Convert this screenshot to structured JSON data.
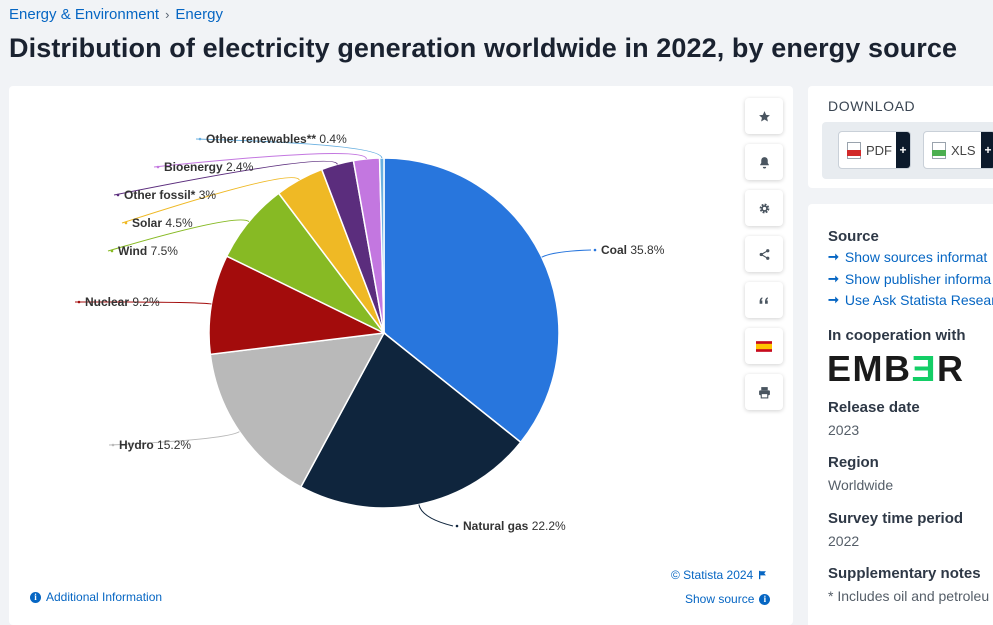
{
  "breadcrumb": {
    "parent": "Energy & Environment",
    "separator": "›",
    "current": "Energy"
  },
  "page_title": "Distribution of electricity generation worldwide in 2022, by energy source",
  "tools": [
    {
      "icon": "star-icon"
    },
    {
      "icon": "bell-icon"
    },
    {
      "icon": "gear-icon"
    },
    {
      "icon": "share-icon"
    },
    {
      "icon": "quote-icon"
    },
    {
      "icon": "spain-flag-icon"
    },
    {
      "icon": "print-icon"
    }
  ],
  "chart_footer": {
    "credit": "© Statista 2024",
    "show_source": "Show source",
    "additional_info": "Additional Information"
  },
  "download": {
    "title": "DOWNLOAD",
    "pdf_label": "PDF",
    "xls_label": "XLS",
    "plus": "+"
  },
  "meta": {
    "source_header": "Source",
    "links": [
      "Show sources informat",
      "Show publisher informa",
      "Use Ask Statista Resear"
    ],
    "link_arrow": "➞",
    "cooperation_header": "In cooperation with",
    "cooperation_logo": {
      "before": "EMB",
      "highlight": "Ǝ",
      "after": "R",
      "color": "#13ce66"
    },
    "release_header": "Release date",
    "release_value": "2023",
    "region_header": "Region",
    "region_value": "Worldwide",
    "survey_header": "Survey time period",
    "survey_value": "2022",
    "supplementary_header": "Supplementary notes",
    "supplementary_value": "* Includes oil and petroleu"
  },
  "chart_data": {
    "type": "pie",
    "series": [
      {
        "name": "Coal",
        "label": "35.8%",
        "value": 35.8,
        "color": "#2876dd"
      },
      {
        "name": "Natural gas",
        "label": "22.2%",
        "value": 22.2,
        "color": "#0f253d"
      },
      {
        "name": "Hydro",
        "label": "15.2%",
        "value": 15.2,
        "color": "#b9b9b9"
      },
      {
        "name": "Nuclear",
        "label": "9.2%",
        "value": 9.2,
        "color": "#a30c0c"
      },
      {
        "name": "Wind",
        "label": "7.5%",
        "value": 7.5,
        "color": "#87ba24"
      },
      {
        "name": "Solar",
        "label": "4.5%",
        "value": 4.5,
        "color": "#efb925"
      },
      {
        "name": "Other fossil*",
        "label": "3%",
        "value": 3,
        "color": "#5b2d7d"
      },
      {
        "name": "Bioenergy",
        "label": "2.4%",
        "value": 2.4,
        "color": "#c377e0"
      },
      {
        "name": "Other renewables**",
        "label": "0.4%",
        "value": 0.4,
        "color": "#6ab0e0"
      }
    ]
  }
}
